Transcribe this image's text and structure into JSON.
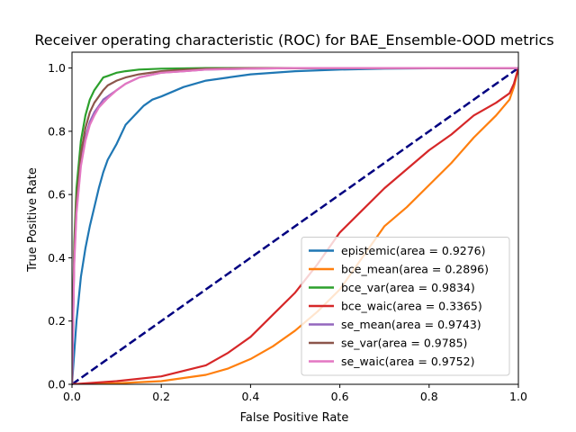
{
  "chart_data": {
    "type": "line",
    "title": "Receiver operating characteristic (ROC) for BAE_Ensemble-OOD metrics",
    "xlabel": "False Positive Rate",
    "ylabel": "True Positive Rate",
    "xlim": [
      0,
      1
    ],
    "ylim": [
      0,
      1.05
    ],
    "xticks": [
      "0.0",
      "0.2",
      "0.4",
      "0.6",
      "0.8",
      "1.0"
    ],
    "yticks": [
      "0.0",
      "0.2",
      "0.4",
      "0.6",
      "0.8",
      "1.0"
    ],
    "grid": false,
    "legend_position": "lower-right",
    "diagonal": {
      "color": "#000080",
      "style": "dashed",
      "x": [
        0,
        1
      ],
      "y": [
        0,
        1
      ]
    },
    "series": [
      {
        "name": "epistemic(area = 0.9276)",
        "color": "#1f77b4",
        "x": [
          0,
          0.01,
          0.02,
          0.03,
          0.04,
          0.05,
          0.06,
          0.07,
          0.08,
          0.1,
          0.12,
          0.14,
          0.16,
          0.18,
          0.2,
          0.25,
          0.3,
          0.35,
          0.4,
          0.5,
          0.6,
          0.7,
          0.8,
          0.9,
          1.0
        ],
        "y": [
          0,
          0.2,
          0.34,
          0.43,
          0.5,
          0.56,
          0.62,
          0.67,
          0.71,
          0.76,
          0.82,
          0.85,
          0.88,
          0.9,
          0.91,
          0.94,
          0.96,
          0.97,
          0.98,
          0.99,
          0.995,
          0.998,
          0.999,
          1.0,
          1.0
        ]
      },
      {
        "name": "bce_mean(area = 0.2896)",
        "color": "#ff7f0e",
        "x": [
          0,
          0.1,
          0.2,
          0.3,
          0.35,
          0.4,
          0.45,
          0.5,
          0.55,
          0.6,
          0.65,
          0.7,
          0.75,
          0.8,
          0.85,
          0.9,
          0.95,
          0.98,
          0.99,
          1.0
        ],
        "y": [
          0,
          0.003,
          0.01,
          0.03,
          0.05,
          0.08,
          0.12,
          0.17,
          0.23,
          0.3,
          0.4,
          0.5,
          0.56,
          0.63,
          0.7,
          0.78,
          0.85,
          0.9,
          0.94,
          1.0
        ]
      },
      {
        "name": "bce_var(area = 0.9834)",
        "color": "#2ca02c",
        "x": [
          0,
          0.005,
          0.01,
          0.02,
          0.03,
          0.04,
          0.05,
          0.06,
          0.07,
          0.08,
          0.1,
          0.12,
          0.15,
          0.2,
          0.3,
          0.5,
          1.0
        ],
        "y": [
          0,
          0.45,
          0.62,
          0.77,
          0.85,
          0.9,
          0.93,
          0.95,
          0.97,
          0.975,
          0.985,
          0.99,
          0.995,
          0.998,
          1.0,
          1.0,
          1.0
        ]
      },
      {
        "name": "bce_waic(area = 0.3365)",
        "color": "#d62728",
        "x": [
          0,
          0.1,
          0.2,
          0.3,
          0.35,
          0.4,
          0.45,
          0.5,
          0.55,
          0.6,
          0.65,
          0.7,
          0.75,
          0.8,
          0.85,
          0.9,
          0.95,
          0.98,
          0.99,
          1.0
        ],
        "y": [
          0,
          0.01,
          0.025,
          0.06,
          0.1,
          0.15,
          0.22,
          0.29,
          0.38,
          0.48,
          0.55,
          0.62,
          0.68,
          0.74,
          0.79,
          0.85,
          0.89,
          0.92,
          0.95,
          1.0
        ]
      },
      {
        "name": "se_mean(area = 0.9743)",
        "color": "#9467bd",
        "x": [
          0,
          0.005,
          0.01,
          0.02,
          0.03,
          0.04,
          0.05,
          0.06,
          0.07,
          0.08,
          0.1,
          0.12,
          0.15,
          0.2,
          0.25,
          0.3,
          0.4,
          0.5,
          1.0
        ],
        "y": [
          0,
          0.4,
          0.55,
          0.7,
          0.78,
          0.83,
          0.86,
          0.88,
          0.9,
          0.91,
          0.93,
          0.95,
          0.97,
          0.985,
          0.99,
          0.995,
          0.998,
          1.0,
          1.0
        ]
      },
      {
        "name": "se_var(area = 0.9785)",
        "color": "#8c564b",
        "x": [
          0,
          0.005,
          0.01,
          0.02,
          0.03,
          0.04,
          0.05,
          0.06,
          0.07,
          0.08,
          0.1,
          0.12,
          0.15,
          0.2,
          0.25,
          0.3,
          0.4,
          1.0
        ],
        "y": [
          0,
          0.42,
          0.58,
          0.73,
          0.81,
          0.86,
          0.89,
          0.91,
          0.93,
          0.945,
          0.96,
          0.97,
          0.98,
          0.99,
          0.995,
          0.998,
          1.0,
          1.0
        ]
      },
      {
        "name": "se_waic(area = 0.9752)",
        "color": "#e377c2",
        "x": [
          0,
          0.005,
          0.01,
          0.02,
          0.03,
          0.04,
          0.05,
          0.06,
          0.07,
          0.08,
          0.1,
          0.12,
          0.15,
          0.2,
          0.25,
          0.3,
          0.4,
          0.5,
          1.0
        ],
        "y": [
          0,
          0.38,
          0.54,
          0.69,
          0.77,
          0.82,
          0.85,
          0.875,
          0.89,
          0.905,
          0.93,
          0.95,
          0.97,
          0.985,
          0.99,
          0.995,
          0.998,
          1.0,
          1.0
        ]
      }
    ]
  }
}
